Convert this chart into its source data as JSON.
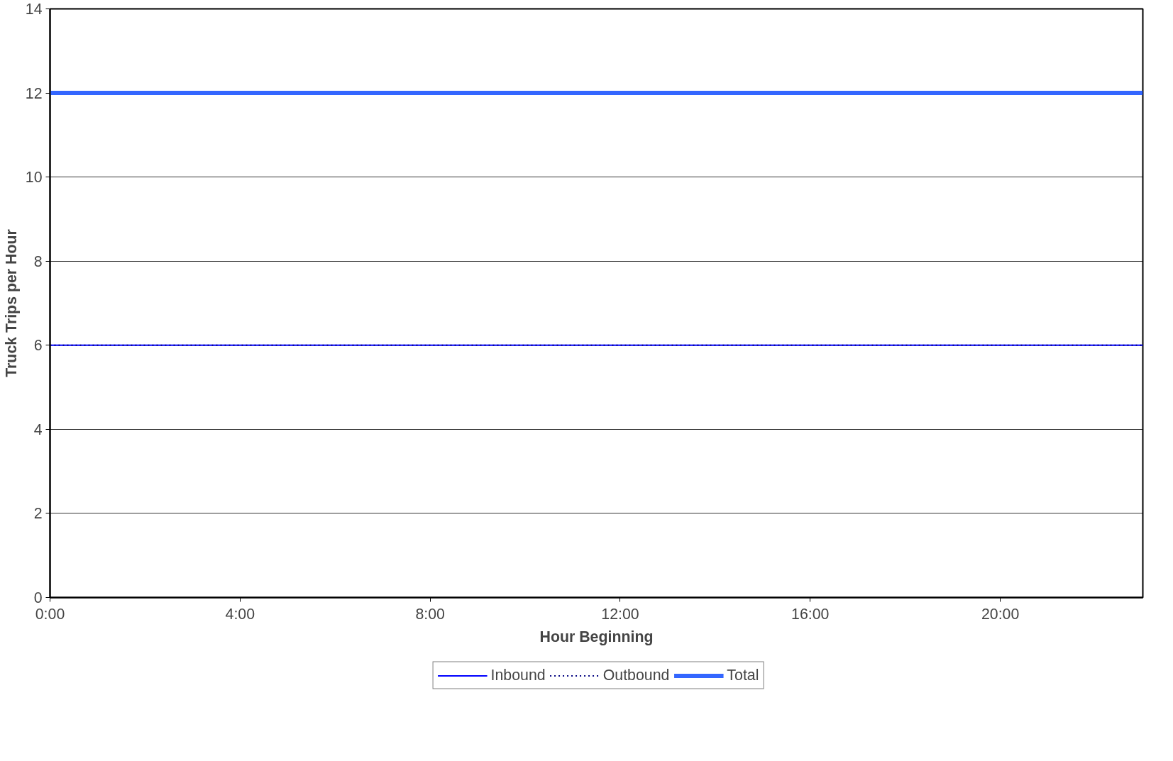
{
  "chart_data": {
    "type": "line",
    "xlabel": "Hour Beginning",
    "ylabel": "Truck Trips per Hour",
    "x": [
      0,
      23
    ],
    "series": [
      {
        "name": "Inbound",
        "color": "#0000ff",
        "line_style": "solid",
        "values": [
          6,
          6
        ]
      },
      {
        "name": "Outbound",
        "color": "#000080",
        "line_style": "dotted",
        "values": [
          6,
          6
        ]
      },
      {
        "name": "Total",
        "color": "#3366ff",
        "line_style": "solid",
        "values": [
          12,
          12
        ]
      }
    ],
    "xlim": [
      0,
      23
    ],
    "ylim": [
      0,
      14
    ],
    "xticks": [
      {
        "value": 0,
        "label": "0:00"
      },
      {
        "value": 4,
        "label": "4:00"
      },
      {
        "value": 8,
        "label": "8:00"
      },
      {
        "value": 12,
        "label": "12:00"
      },
      {
        "value": 16,
        "label": "16:00"
      },
      {
        "value": 20,
        "label": "20:00"
      }
    ],
    "yticks": [
      0,
      2,
      4,
      6,
      8,
      10,
      12,
      14
    ],
    "grid": "y",
    "legend": "bottom",
    "marker": "none"
  }
}
